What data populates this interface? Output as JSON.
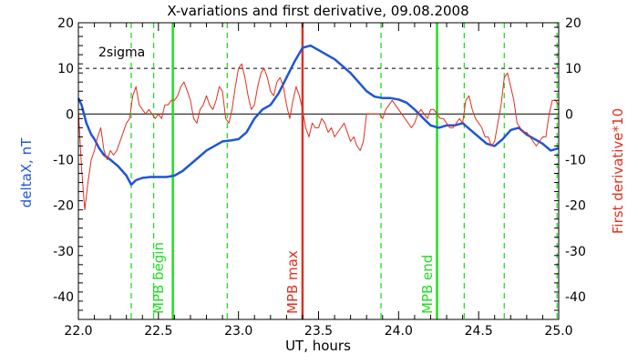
{
  "chart_data": {
    "type": "line",
    "title": "X-variations and first derivative, 09.08.2008",
    "xlabel": "UT, hours",
    "ylabel_left": "deltaX, nT",
    "ylabel_right": "First derivative*10",
    "xlim": [
      22.0,
      25.0
    ],
    "ylim": [
      -45,
      20
    ],
    "x_ticks": [
      "22.0",
      "22.5",
      "23.0",
      "23.5",
      "24.0",
      "24.5",
      "25.0"
    ],
    "y_ticks": [
      "20",
      "10",
      "0",
      "-10",
      "-20",
      "-30",
      "-40"
    ],
    "grid": false,
    "colors": {
      "deltaX": "#1f55d6",
      "derivative": "#e0301e",
      "mpb_boundary": "#22dd22",
      "mpb_max": "#e0301e",
      "reference": "#000000"
    },
    "annotations": {
      "sigma_label": "2sigma",
      "mpb_begin": "MPB begin",
      "mpb_max": "MPB max",
      "mpb_end": "MPB end"
    },
    "reference_lines": {
      "zero": 0,
      "two_sigma": 10
    },
    "vertical_markers": {
      "mpb_begin_x": 22.59,
      "mpb_max_x": 23.4,
      "mpb_end_x": 24.24,
      "dashed_x": [
        22.33,
        22.47,
        22.93,
        23.89,
        24.41,
        24.66,
        24.99
      ]
    },
    "series": [
      {
        "key": "deltaX",
        "x": [
          22.0,
          22.02,
          22.05,
          22.08,
          22.1,
          22.13,
          22.16,
          22.2,
          22.25,
          22.3,
          22.33,
          22.36,
          22.4,
          22.45,
          22.5,
          22.55,
          22.6,
          22.65,
          22.7,
          22.75,
          22.8,
          22.85,
          22.9,
          22.95,
          23.0,
          23.05,
          23.1,
          23.15,
          23.2,
          23.25,
          23.3,
          23.35,
          23.4,
          23.45,
          23.5,
          23.55,
          23.6,
          23.65,
          23.7,
          23.75,
          23.8,
          23.85,
          23.9,
          23.95,
          24.0,
          24.05,
          24.1,
          24.15,
          24.2,
          24.25,
          24.3,
          24.35,
          24.4,
          24.45,
          24.5,
          24.55,
          24.6,
          24.65,
          24.7,
          24.75,
          24.8,
          24.85,
          24.9,
          24.95,
          25.0
        ],
        "values": [
          3.5,
          2.0,
          -2.0,
          -4.5,
          -5.5,
          -7.5,
          -9.0,
          -10.0,
          -11.5,
          -13.5,
          -15.5,
          -14.5,
          -14.0,
          -13.8,
          -13.8,
          -13.8,
          -13.5,
          -12.5,
          -11.0,
          -9.5,
          -8.0,
          -7.0,
          -6.0,
          -5.8,
          -5.5,
          -4.0,
          -1.0,
          1.0,
          2.0,
          4.5,
          8.0,
          11.5,
          14.5,
          15.0,
          14.0,
          13.0,
          12.0,
          10.5,
          9.0,
          7.0,
          5.0,
          3.8,
          3.5,
          3.5,
          3.2,
          2.5,
          1.0,
          -0.8,
          -2.5,
          -3.0,
          -2.5,
          -2.5,
          -2.0,
          -3.5,
          -5.0,
          -6.5,
          -7.0,
          -5.5,
          -3.5,
          -3.0,
          -4.5,
          -5.5,
          -6.5,
          -8.0,
          -7.5
        ]
      },
      {
        "key": "derivative",
        "x": [
          22.0,
          22.02,
          22.04,
          22.06,
          22.08,
          22.1,
          22.12,
          22.14,
          22.16,
          22.18,
          22.2,
          22.22,
          22.24,
          22.26,
          22.28,
          22.3,
          22.32,
          22.34,
          22.36,
          22.38,
          22.4,
          22.42,
          22.44,
          22.46,
          22.48,
          22.5,
          22.52,
          22.54,
          22.56,
          22.58,
          22.6,
          22.62,
          22.64,
          22.66,
          22.68,
          22.7,
          22.72,
          22.74,
          22.76,
          22.78,
          22.8,
          22.82,
          22.84,
          22.86,
          22.88,
          22.9,
          22.92,
          22.94,
          22.96,
          22.98,
          23.0,
          23.02,
          23.04,
          23.06,
          23.08,
          23.1,
          23.12,
          23.14,
          23.16,
          23.18,
          23.2,
          23.22,
          23.24,
          23.26,
          23.28,
          23.3,
          23.32,
          23.34,
          23.36,
          23.38,
          23.4,
          23.42,
          23.44,
          23.46,
          23.48,
          23.5,
          23.52,
          23.54,
          23.56,
          23.58,
          23.6,
          23.62,
          23.64,
          23.66,
          23.68,
          23.7,
          23.72,
          23.74,
          23.76,
          23.78,
          23.8,
          23.82,
          23.84,
          23.86,
          23.88,
          23.9,
          23.92,
          23.94,
          23.96,
          23.98,
          24.0,
          24.02,
          24.04,
          24.06,
          24.08,
          24.1,
          24.12,
          24.14,
          24.16,
          24.18,
          24.2,
          24.22,
          24.24,
          24.26,
          24.28,
          24.3,
          24.32,
          24.34,
          24.36,
          24.38,
          24.4,
          24.42,
          24.44,
          24.46,
          24.48,
          24.5,
          24.52,
          24.54,
          24.56,
          24.58,
          24.6,
          24.62,
          24.64,
          24.66,
          24.68,
          24.7,
          24.72,
          24.74,
          24.76,
          24.78,
          24.8,
          24.82,
          24.84,
          24.86,
          24.88,
          24.9,
          24.92,
          24.94,
          24.96,
          24.98,
          25.0
        ],
        "values": [
          1,
          -12,
          -21,
          -15,
          -10,
          -8,
          -5,
          -3,
          -8,
          -10,
          -8,
          -9,
          -8,
          -6,
          -4,
          -2,
          -1,
          4,
          6,
          2,
          1,
          0,
          1,
          0,
          -1,
          0,
          -1,
          2,
          2,
          3,
          3,
          4,
          6,
          7,
          5,
          3,
          -1,
          -2,
          1,
          2,
          4,
          2,
          1,
          3,
          6,
          5,
          -1,
          -2,
          1,
          6,
          10,
          11,
          8,
          4,
          1,
          2,
          6,
          9,
          10,
          8,
          5,
          4,
          7,
          8,
          6,
          2,
          -1,
          3,
          6,
          4,
          1,
          -3,
          -5,
          -2,
          -3,
          -3,
          -1,
          -2,
          -4,
          -3,
          -5,
          -4,
          -3,
          -2,
          -4,
          -6,
          -5,
          -7,
          -8,
          -6,
          0,
          0,
          0,
          0,
          0,
          -1,
          1,
          2,
          3,
          2,
          1,
          0,
          -1,
          -2,
          -3,
          -2,
          0,
          1,
          0,
          -1,
          1,
          1,
          0,
          -1,
          -1,
          -2,
          -3,
          -3,
          -2,
          -1,
          -2,
          3,
          4,
          1,
          -1,
          -2,
          -3,
          -5,
          -5,
          -7,
          -6,
          -2,
          2,
          8,
          9,
          6,
          3,
          -2,
          -3,
          -4,
          -4,
          -5,
          -6,
          -7,
          -6,
          -5,
          -5,
          0,
          3,
          3,
          2
        ]
      }
    ]
  }
}
